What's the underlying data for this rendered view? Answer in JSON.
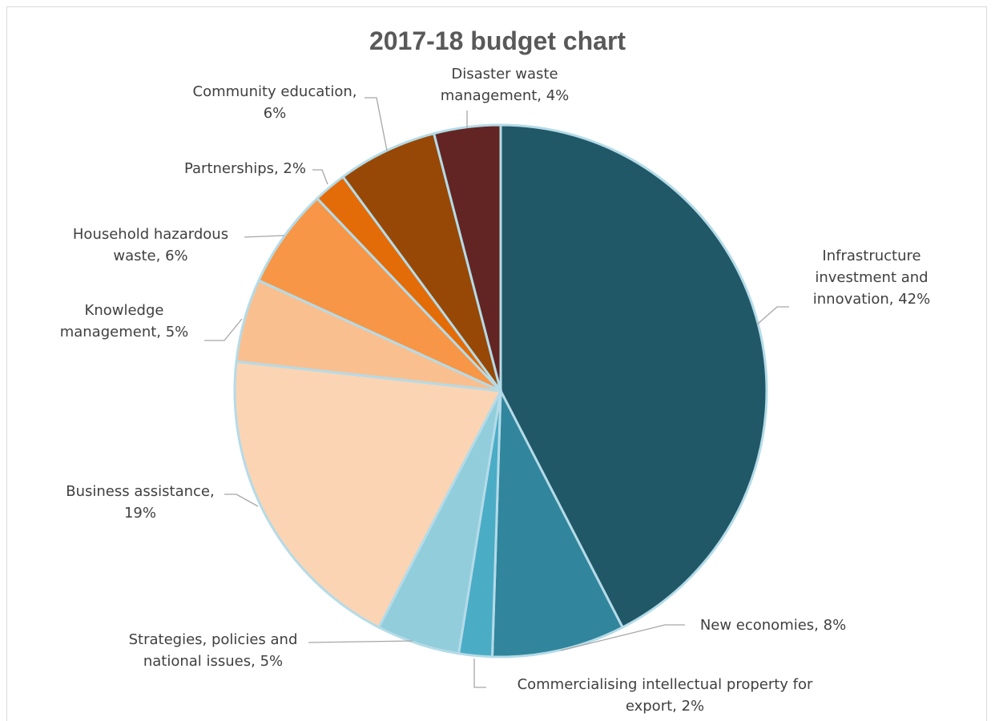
{
  "chart_data": {
    "type": "pie",
    "title": "2017-18 budget chart",
    "start_angle_deg": 0,
    "direction": "clockwise",
    "slices": [
      {
        "name": "Infrastructure investment and innovation",
        "value": 42,
        "label_lines": [
          "Infrastructure",
          "investment and",
          "innovation, 42%"
        ],
        "color": "#215868"
      },
      {
        "name": "New economies",
        "value": 8,
        "label_lines": [
          "New economies, 8%"
        ],
        "color": "#31859c"
      },
      {
        "name": "Commercialising intellectual property for export",
        "value": 2,
        "label_lines": [
          "Commercialising intellectual property for",
          "export, 2%"
        ],
        "color": "#4bacc6"
      },
      {
        "name": "Strategies, policies and national issues",
        "value": 5,
        "label_lines": [
          "Strategies, policies and",
          "national issues, 5%"
        ],
        "color": "#92cddc"
      },
      {
        "name": "Business assistance",
        "value": 19,
        "label_lines": [
          "Business assistance,",
          "19%"
        ],
        "color": "#fbd4b4"
      },
      {
        "name": "Knowledge management",
        "value": 5,
        "label_lines": [
          "Knowledge",
          "management, 5%"
        ],
        "color": "#fabf8f"
      },
      {
        "name": "Household hazardous waste",
        "value": 6,
        "label_lines": [
          "Household hazardous",
          "waste, 6%"
        ],
        "color": "#f79646"
      },
      {
        "name": "Partnerships",
        "value": 2,
        "label_lines": [
          "Partnerships, 2%"
        ],
        "color": "#e36c09"
      },
      {
        "name": "Community education",
        "value": 6,
        "label_lines": [
          "Community education,",
          "6%"
        ],
        "color": "#974806"
      },
      {
        "name": "Disaster waste management",
        "value": 4,
        "label_lines": [
          "Disaster waste",
          "management, 4%"
        ],
        "color": "#632523"
      }
    ]
  }
}
